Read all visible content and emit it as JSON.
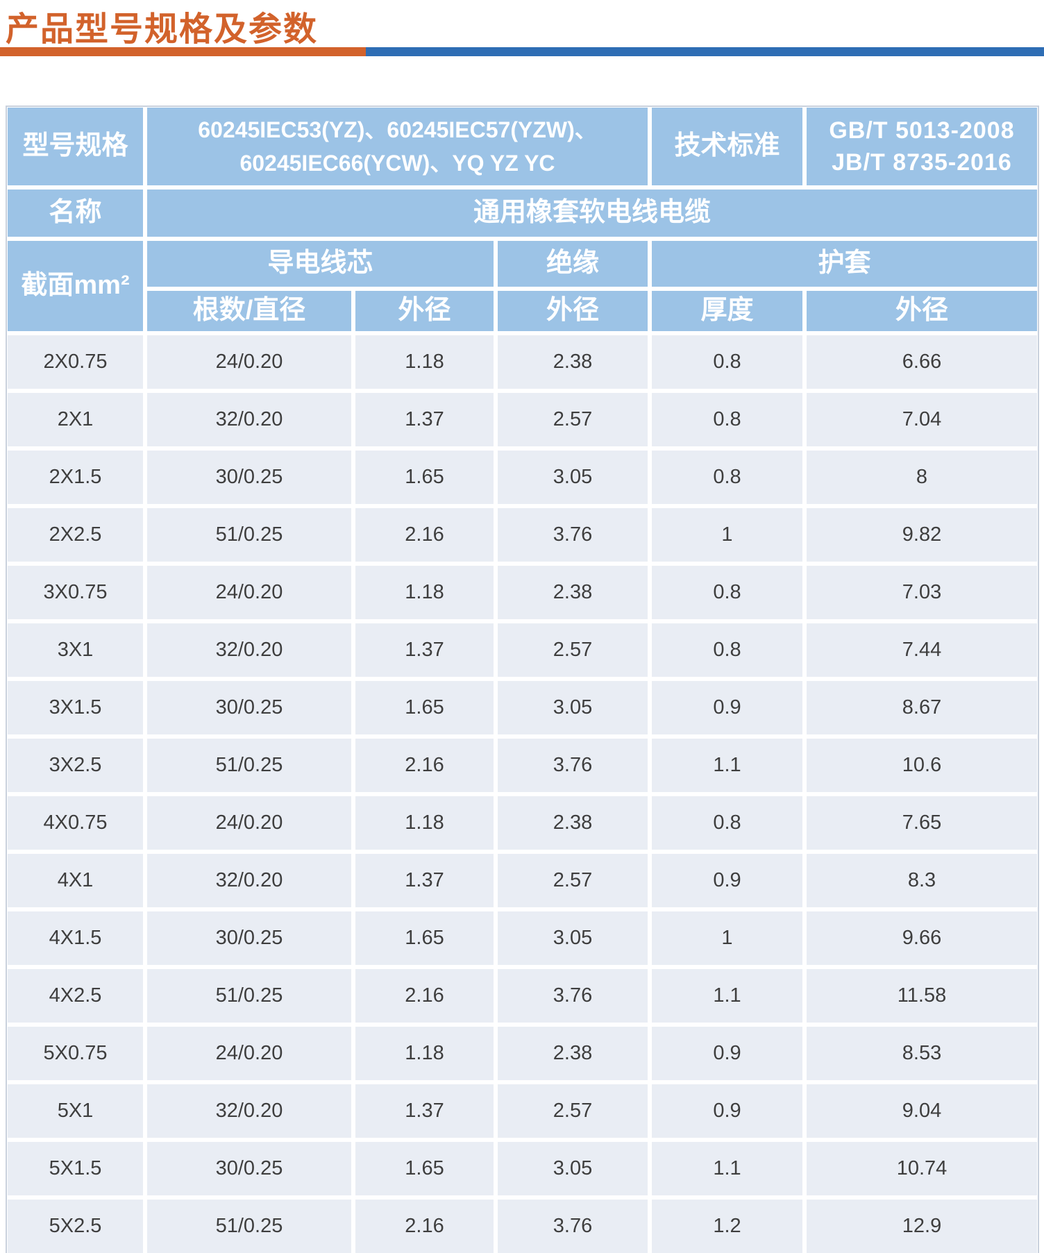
{
  "page": {
    "title": "产品型号规格及参数",
    "accent_colors": {
      "title_orange": "#D2622B",
      "underline_blue": "#2E6DB4",
      "header_blue": "#9CC3E6",
      "row_background": "#E9EDF4"
    }
  },
  "table": {
    "header": {
      "model_label": "型号规格",
      "model_value_line1": "60245IEC53(YZ)、60245IEC57(YZW)、",
      "model_value_line2": "60245IEC66(YCW)、YQ YZ YC",
      "standard_label": "技术标准",
      "standard_value_line1": "GB/T 5013-2008",
      "standard_value_line2": "JB/T 8735-2016",
      "name_label": "名称",
      "name_value": "通用橡套软电线电缆",
      "section_label": "截面mm²",
      "conductor_group_label": "导电线芯",
      "insulation_group_label": "绝缘",
      "sheath_group_label": "护套",
      "col_strands_diameter": "根数/直径",
      "col_conductor_od": "外径",
      "col_insulation_od": "外径",
      "col_sheath_thickness": "厚度",
      "col_sheath_od": "外径"
    },
    "rows": [
      [
        "2X0.75",
        "24/0.20",
        "1.18",
        "2.38",
        "0.8",
        "6.66"
      ],
      [
        "2X1",
        "32/0.20",
        "1.37",
        "2.57",
        "0.8",
        "7.04"
      ],
      [
        "2X1.5",
        "30/0.25",
        "1.65",
        "3.05",
        "0.8",
        "8"
      ],
      [
        "2X2.5",
        "51/0.25",
        "2.16",
        "3.76",
        "1",
        "9.82"
      ],
      [
        "3X0.75",
        "24/0.20",
        "1.18",
        "2.38",
        "0.8",
        "7.03"
      ],
      [
        "3X1",
        "32/0.20",
        "1.37",
        "2.57",
        "0.8",
        "7.44"
      ],
      [
        "3X1.5",
        "30/0.25",
        "1.65",
        "3.05",
        "0.9",
        "8.67"
      ],
      [
        "3X2.5",
        "51/0.25",
        "2.16",
        "3.76",
        "1.1",
        "10.6"
      ],
      [
        "4X0.75",
        "24/0.20",
        "1.18",
        "2.38",
        "0.8",
        "7.65"
      ],
      [
        "4X1",
        "32/0.20",
        "1.37",
        "2.57",
        "0.9",
        "8.3"
      ],
      [
        "4X1.5",
        "30/0.25",
        "1.65",
        "3.05",
        "1",
        "9.66"
      ],
      [
        "4X2.5",
        "51/0.25",
        "2.16",
        "3.76",
        "1.1",
        "11.58"
      ],
      [
        "5X0.75",
        "24/0.20",
        "1.18",
        "2.38",
        "0.9",
        "8.53"
      ],
      [
        "5X1",
        "32/0.20",
        "1.37",
        "2.57",
        "0.9",
        "9.04"
      ],
      [
        "5X1.5",
        "30/0.25",
        "1.65",
        "3.05",
        "1.1",
        "10.74"
      ],
      [
        "5X2.5",
        "51/0.25",
        "2.16",
        "3.76",
        "1.2",
        "12.9"
      ]
    ]
  }
}
